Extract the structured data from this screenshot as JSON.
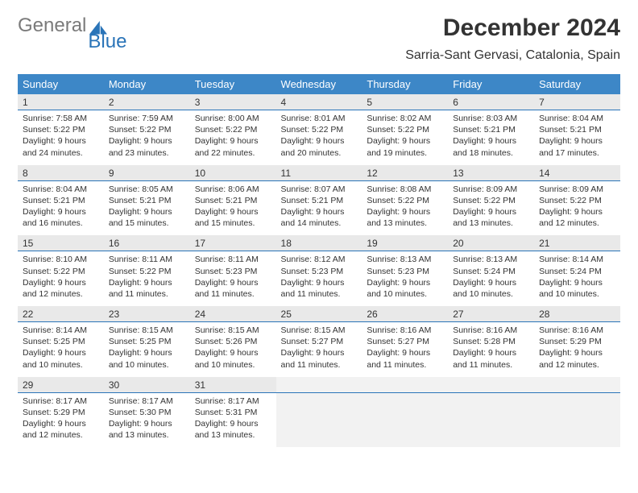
{
  "brand": {
    "part1": "General",
    "part2": "Blue",
    "logo_color": "#2a74b8"
  },
  "title": "December 2024",
  "location": "Sarria-Sant Gervasi, Catalonia, Spain",
  "colors": {
    "header_bg": "#3d87c7",
    "row_stripe": "#e9e9e9",
    "rule": "#2a74b8",
    "empty": "#f2f2f2"
  },
  "day_headers": [
    "Sunday",
    "Monday",
    "Tuesday",
    "Wednesday",
    "Thursday",
    "Friday",
    "Saturday"
  ],
  "weeks": [
    {
      "nums": [
        "1",
        "2",
        "3",
        "4",
        "5",
        "6",
        "7"
      ],
      "cells": [
        {
          "sr": "7:58 AM",
          "ss": "5:22 PM",
          "d1": "Daylight: 9 hours",
          "d2": "and 24 minutes."
        },
        {
          "sr": "7:59 AM",
          "ss": "5:22 PM",
          "d1": "Daylight: 9 hours",
          "d2": "and 23 minutes."
        },
        {
          "sr": "8:00 AM",
          "ss": "5:22 PM",
          "d1": "Daylight: 9 hours",
          "d2": "and 22 minutes."
        },
        {
          "sr": "8:01 AM",
          "ss": "5:22 PM",
          "d1": "Daylight: 9 hours",
          "d2": "and 20 minutes."
        },
        {
          "sr": "8:02 AM",
          "ss": "5:22 PM",
          "d1": "Daylight: 9 hours",
          "d2": "and 19 minutes."
        },
        {
          "sr": "8:03 AM",
          "ss": "5:21 PM",
          "d1": "Daylight: 9 hours",
          "d2": "and 18 minutes."
        },
        {
          "sr": "8:04 AM",
          "ss": "5:21 PM",
          "d1": "Daylight: 9 hours",
          "d2": "and 17 minutes."
        }
      ]
    },
    {
      "nums": [
        "8",
        "9",
        "10",
        "11",
        "12",
        "13",
        "14"
      ],
      "cells": [
        {
          "sr": "8:04 AM",
          "ss": "5:21 PM",
          "d1": "Daylight: 9 hours",
          "d2": "and 16 minutes."
        },
        {
          "sr": "8:05 AM",
          "ss": "5:21 PM",
          "d1": "Daylight: 9 hours",
          "d2": "and 15 minutes."
        },
        {
          "sr": "8:06 AM",
          "ss": "5:21 PM",
          "d1": "Daylight: 9 hours",
          "d2": "and 15 minutes."
        },
        {
          "sr": "8:07 AM",
          "ss": "5:21 PM",
          "d1": "Daylight: 9 hours",
          "d2": "and 14 minutes."
        },
        {
          "sr": "8:08 AM",
          "ss": "5:22 PM",
          "d1": "Daylight: 9 hours",
          "d2": "and 13 minutes."
        },
        {
          "sr": "8:09 AM",
          "ss": "5:22 PM",
          "d1": "Daylight: 9 hours",
          "d2": "and 13 minutes."
        },
        {
          "sr": "8:09 AM",
          "ss": "5:22 PM",
          "d1": "Daylight: 9 hours",
          "d2": "and 12 minutes."
        }
      ]
    },
    {
      "nums": [
        "15",
        "16",
        "17",
        "18",
        "19",
        "20",
        "21"
      ],
      "cells": [
        {
          "sr": "8:10 AM",
          "ss": "5:22 PM",
          "d1": "Daylight: 9 hours",
          "d2": "and 12 minutes."
        },
        {
          "sr": "8:11 AM",
          "ss": "5:22 PM",
          "d1": "Daylight: 9 hours",
          "d2": "and 11 minutes."
        },
        {
          "sr": "8:11 AM",
          "ss": "5:23 PM",
          "d1": "Daylight: 9 hours",
          "d2": "and 11 minutes."
        },
        {
          "sr": "8:12 AM",
          "ss": "5:23 PM",
          "d1": "Daylight: 9 hours",
          "d2": "and 11 minutes."
        },
        {
          "sr": "8:13 AM",
          "ss": "5:23 PM",
          "d1": "Daylight: 9 hours",
          "d2": "and 10 minutes."
        },
        {
          "sr": "8:13 AM",
          "ss": "5:24 PM",
          "d1": "Daylight: 9 hours",
          "d2": "and 10 minutes."
        },
        {
          "sr": "8:14 AM",
          "ss": "5:24 PM",
          "d1": "Daylight: 9 hours",
          "d2": "and 10 minutes."
        }
      ]
    },
    {
      "nums": [
        "22",
        "23",
        "24",
        "25",
        "26",
        "27",
        "28"
      ],
      "cells": [
        {
          "sr": "8:14 AM",
          "ss": "5:25 PM",
          "d1": "Daylight: 9 hours",
          "d2": "and 10 minutes."
        },
        {
          "sr": "8:15 AM",
          "ss": "5:25 PM",
          "d1": "Daylight: 9 hours",
          "d2": "and 10 minutes."
        },
        {
          "sr": "8:15 AM",
          "ss": "5:26 PM",
          "d1": "Daylight: 9 hours",
          "d2": "and 10 minutes."
        },
        {
          "sr": "8:15 AM",
          "ss": "5:27 PM",
          "d1": "Daylight: 9 hours",
          "d2": "and 11 minutes."
        },
        {
          "sr": "8:16 AM",
          "ss": "5:27 PM",
          "d1": "Daylight: 9 hours",
          "d2": "and 11 minutes."
        },
        {
          "sr": "8:16 AM",
          "ss": "5:28 PM",
          "d1": "Daylight: 9 hours",
          "d2": "and 11 minutes."
        },
        {
          "sr": "8:16 AM",
          "ss": "5:29 PM",
          "d1": "Daylight: 9 hours",
          "d2": "and 12 minutes."
        }
      ]
    },
    {
      "nums": [
        "29",
        "30",
        "31",
        "",
        "",
        "",
        ""
      ],
      "cells": [
        {
          "sr": "8:17 AM",
          "ss": "5:29 PM",
          "d1": "Daylight: 9 hours",
          "d2": "and 12 minutes."
        },
        {
          "sr": "8:17 AM",
          "ss": "5:30 PM",
          "d1": "Daylight: 9 hours",
          "d2": "and 13 minutes."
        },
        {
          "sr": "8:17 AM",
          "ss": "5:31 PM",
          "d1": "Daylight: 9 hours",
          "d2": "and 13 minutes."
        },
        null,
        null,
        null,
        null
      ]
    }
  ]
}
